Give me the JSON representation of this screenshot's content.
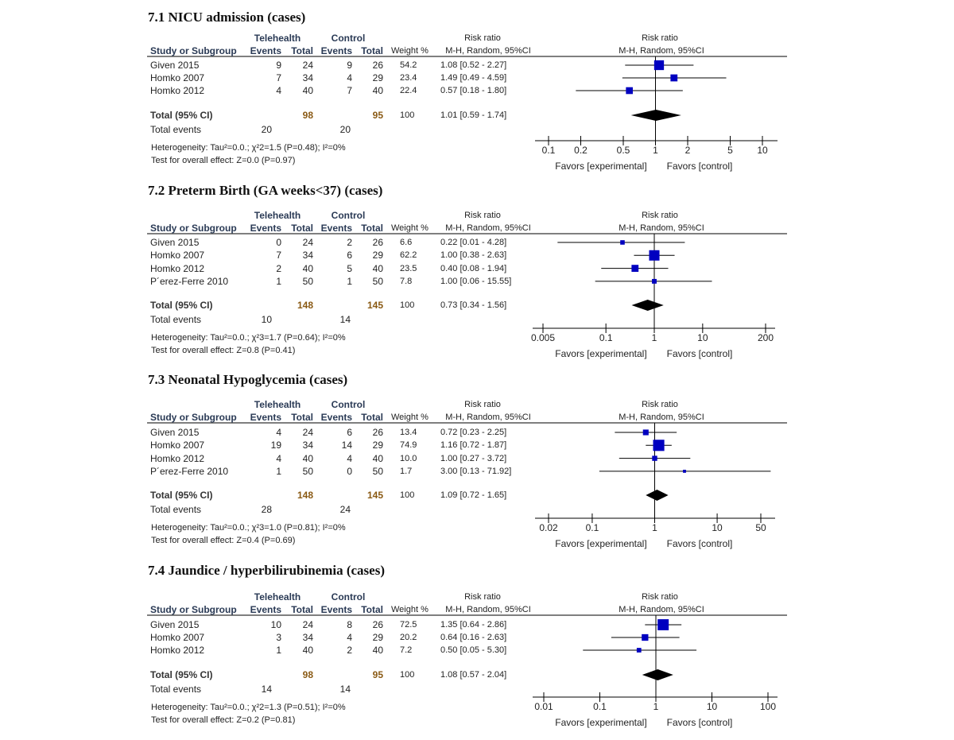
{
  "labels": {
    "study": "Study or Subgroup",
    "group1": "Telehealth",
    "group2": "Control",
    "events": "Events",
    "total": "Total",
    "weight": "Weight %",
    "rr": "Risk ratio",
    "method": "M-H, Random, 95%CI",
    "total_ci": "Total (95% CI)",
    "total_events": "Total events",
    "favors_left": "Favors [experimental]",
    "favors_right": "Favors [control]"
  },
  "colors": {
    "square": "#0000c0",
    "diamond": "#000000",
    "header": "#2a3a55",
    "total_numbers": "#8a5a14"
  },
  "chart_data": [
    {
      "type": "forest",
      "title": "7.1 NICU admission  (cases)",
      "scale": "log",
      "ticks": [
        "0.1",
        "0.2",
        "0.5",
        "1",
        "2",
        "5",
        "10"
      ],
      "xlim": [
        0.1,
        10
      ],
      "studies": [
        {
          "name": "Given 2015",
          "e1": 9,
          "n1": 24,
          "e2": 9,
          "n2": 26,
          "weight": "54.2",
          "ci_text": "1.08 [0.52 - 2.27]",
          "rr": 1.08,
          "lo": 0.52,
          "hi": 2.27
        },
        {
          "name": "Homko 2007",
          "e1": 7,
          "n1": 34,
          "e2": 4,
          "n2": 29,
          "weight": "23.4",
          "ci_text": "1.49 [0.49 - 4.59]",
          "rr": 1.49,
          "lo": 0.49,
          "hi": 4.59
        },
        {
          "name": "Homko 2012",
          "e1": 4,
          "n1": 40,
          "e2": 7,
          "n2": 40,
          "weight": "22.4",
          "ci_text": "0.57 [0.18 - 1.80]",
          "rr": 0.57,
          "lo": 0.18,
          "hi": 1.8
        }
      ],
      "total": {
        "n1": 98,
        "n2": 95,
        "weight": "100",
        "ci_text": "1.01 [0.59 - 1.74]",
        "rr": 1.01,
        "lo": 0.59,
        "hi": 1.74,
        "e1": 20,
        "e2": 20
      },
      "heterogeneity": "Heterogeneity:  Tau²=0.0.; χ²2=1.5 (P=0.48); I²=0%",
      "overall": "Test for overall effect: Z=0.0 (P=0.97)"
    },
    {
      "type": "forest",
      "title": "7.2 Preterm Birth (GA weeks<37) (cases)",
      "scale": "log",
      "ticks": [
        "0.005",
        "0.1",
        "1",
        "10",
        "200"
      ],
      "xlim": [
        0.005,
        200
      ],
      "studies": [
        {
          "name": "Given 2015",
          "e1": 0,
          "n1": 24,
          "e2": 2,
          "n2": 26,
          "weight": "6.6",
          "ci_text": "0.22 [0.01 - 4.28]",
          "rr": 0.22,
          "lo": 0.01,
          "hi": 4.28
        },
        {
          "name": "Homko 2007",
          "e1": 7,
          "n1": 34,
          "e2": 6,
          "n2": 29,
          "weight": "62.2",
          "ci_text": "1.00 [0.38 - 2.63]",
          "rr": 1.0,
          "lo": 0.38,
          "hi": 2.63
        },
        {
          "name": "Homko 2012",
          "e1": 2,
          "n1": 40,
          "e2": 5,
          "n2": 40,
          "weight": "23.5",
          "ci_text": "0.40 [0.08 - 1.94]",
          "rr": 0.4,
          "lo": 0.08,
          "hi": 1.94
        },
        {
          "name": "P´erez-Ferre 2010",
          "e1": 1,
          "n1": 50,
          "e2": 1,
          "n2": 50,
          "weight": "7.8",
          "ci_text": "1.00 [0.06 - 15.55]",
          "rr": 1.0,
          "lo": 0.06,
          "hi": 15.55
        }
      ],
      "total": {
        "n1": 148,
        "n2": 145,
        "weight": "100",
        "ci_text": "0.73 [0.34 - 1.56]",
        "rr": 0.73,
        "lo": 0.34,
        "hi": 1.56,
        "e1": 10,
        "e2": 14
      },
      "heterogeneity": "Heterogeneity:  Tau²=0.0.; χ²3=1.7 (P=0.64); I²=0%",
      "overall": "Test for overall effect: Z=0.8 (P=0.41)"
    },
    {
      "type": "forest",
      "title": "7.3 Neonatal Hypoglycemia   (cases)",
      "scale": "log",
      "ticks": [
        "0.02",
        "0.1",
        "1",
        "10",
        "50"
      ],
      "xlim": [
        0.02,
        50
      ],
      "studies": [
        {
          "name": "Given 2015",
          "e1": 4,
          "n1": 24,
          "e2": 6,
          "n2": 26,
          "weight": "13.4",
          "ci_text": "0.72 [0.23 - 2.25]",
          "rr": 0.72,
          "lo": 0.23,
          "hi": 2.25
        },
        {
          "name": "Homko 2007",
          "e1": 19,
          "n1": 34,
          "e2": 14,
          "n2": 29,
          "weight": "74.9",
          "ci_text": "1.16 [0.72 - 1.87]",
          "rr": 1.16,
          "lo": 0.72,
          "hi": 1.87
        },
        {
          "name": "Homko 2012",
          "e1": 4,
          "n1": 40,
          "e2": 4,
          "n2": 40,
          "weight": "10.0",
          "ci_text": "1.00 [0.27 - 3.72]",
          "rr": 1.0,
          "lo": 0.27,
          "hi": 3.72
        },
        {
          "name": "P´erez-Ferre 2010",
          "e1": 1,
          "n1": 50,
          "e2": 0,
          "n2": 50,
          "weight": "1.7",
          "ci_text": "3.00 [0.13 - 71.92]",
          "rr": 3.0,
          "lo": 0.13,
          "hi": 71.92
        }
      ],
      "total": {
        "n1": 148,
        "n2": 145,
        "weight": "100",
        "ci_text": "1.09 [0.72 - 1.65]",
        "rr": 1.09,
        "lo": 0.72,
        "hi": 1.65,
        "e1": 28,
        "e2": 24
      },
      "heterogeneity": "Heterogeneity:  Tau²=0.0.; χ²3=1.0 (P=0.81); I²=0%",
      "overall": "Test for overall effect: Z=0.4 (P=0.69)"
    },
    {
      "type": "forest",
      "title": "7.4 Jaundice / hyperbilirubinemia  (cases)",
      "scale": "log",
      "ticks": [
        "0.01",
        "0.1",
        "1",
        "10",
        "100"
      ],
      "xlim": [
        0.01,
        100
      ],
      "studies": [
        {
          "name": "Given 2015",
          "e1": 10,
          "n1": 24,
          "e2": 8,
          "n2": 26,
          "weight": "72.5",
          "ci_text": "1.35 [0.64 - 2.86]",
          "rr": 1.35,
          "lo": 0.64,
          "hi": 2.86
        },
        {
          "name": "Homko 2007",
          "e1": 3,
          "n1": 34,
          "e2": 4,
          "n2": 29,
          "weight": "20.2",
          "ci_text": "0.64 [0.16 - 2.63]",
          "rr": 0.64,
          "lo": 0.16,
          "hi": 2.63
        },
        {
          "name": "Homko 2012",
          "e1": 1,
          "n1": 40,
          "e2": 2,
          "n2": 40,
          "weight": "7.2",
          "ci_text": "0.50 [0.05 - 5.30]",
          "rr": 0.5,
          "lo": 0.05,
          "hi": 5.3
        }
      ],
      "total": {
        "n1": 98,
        "n2": 95,
        "weight": "100",
        "ci_text": "1.08 [0.57 - 2.04]",
        "rr": 1.08,
        "lo": 0.57,
        "hi": 2.04,
        "e1": 14,
        "e2": 14
      },
      "heterogeneity": "Heterogeneity:  Tau²=0.0.; χ²2=1.3 (P=0.51); I²=0%",
      "overall": "Test for overall effect: Z=0.2 (P=0.81)"
    }
  ]
}
